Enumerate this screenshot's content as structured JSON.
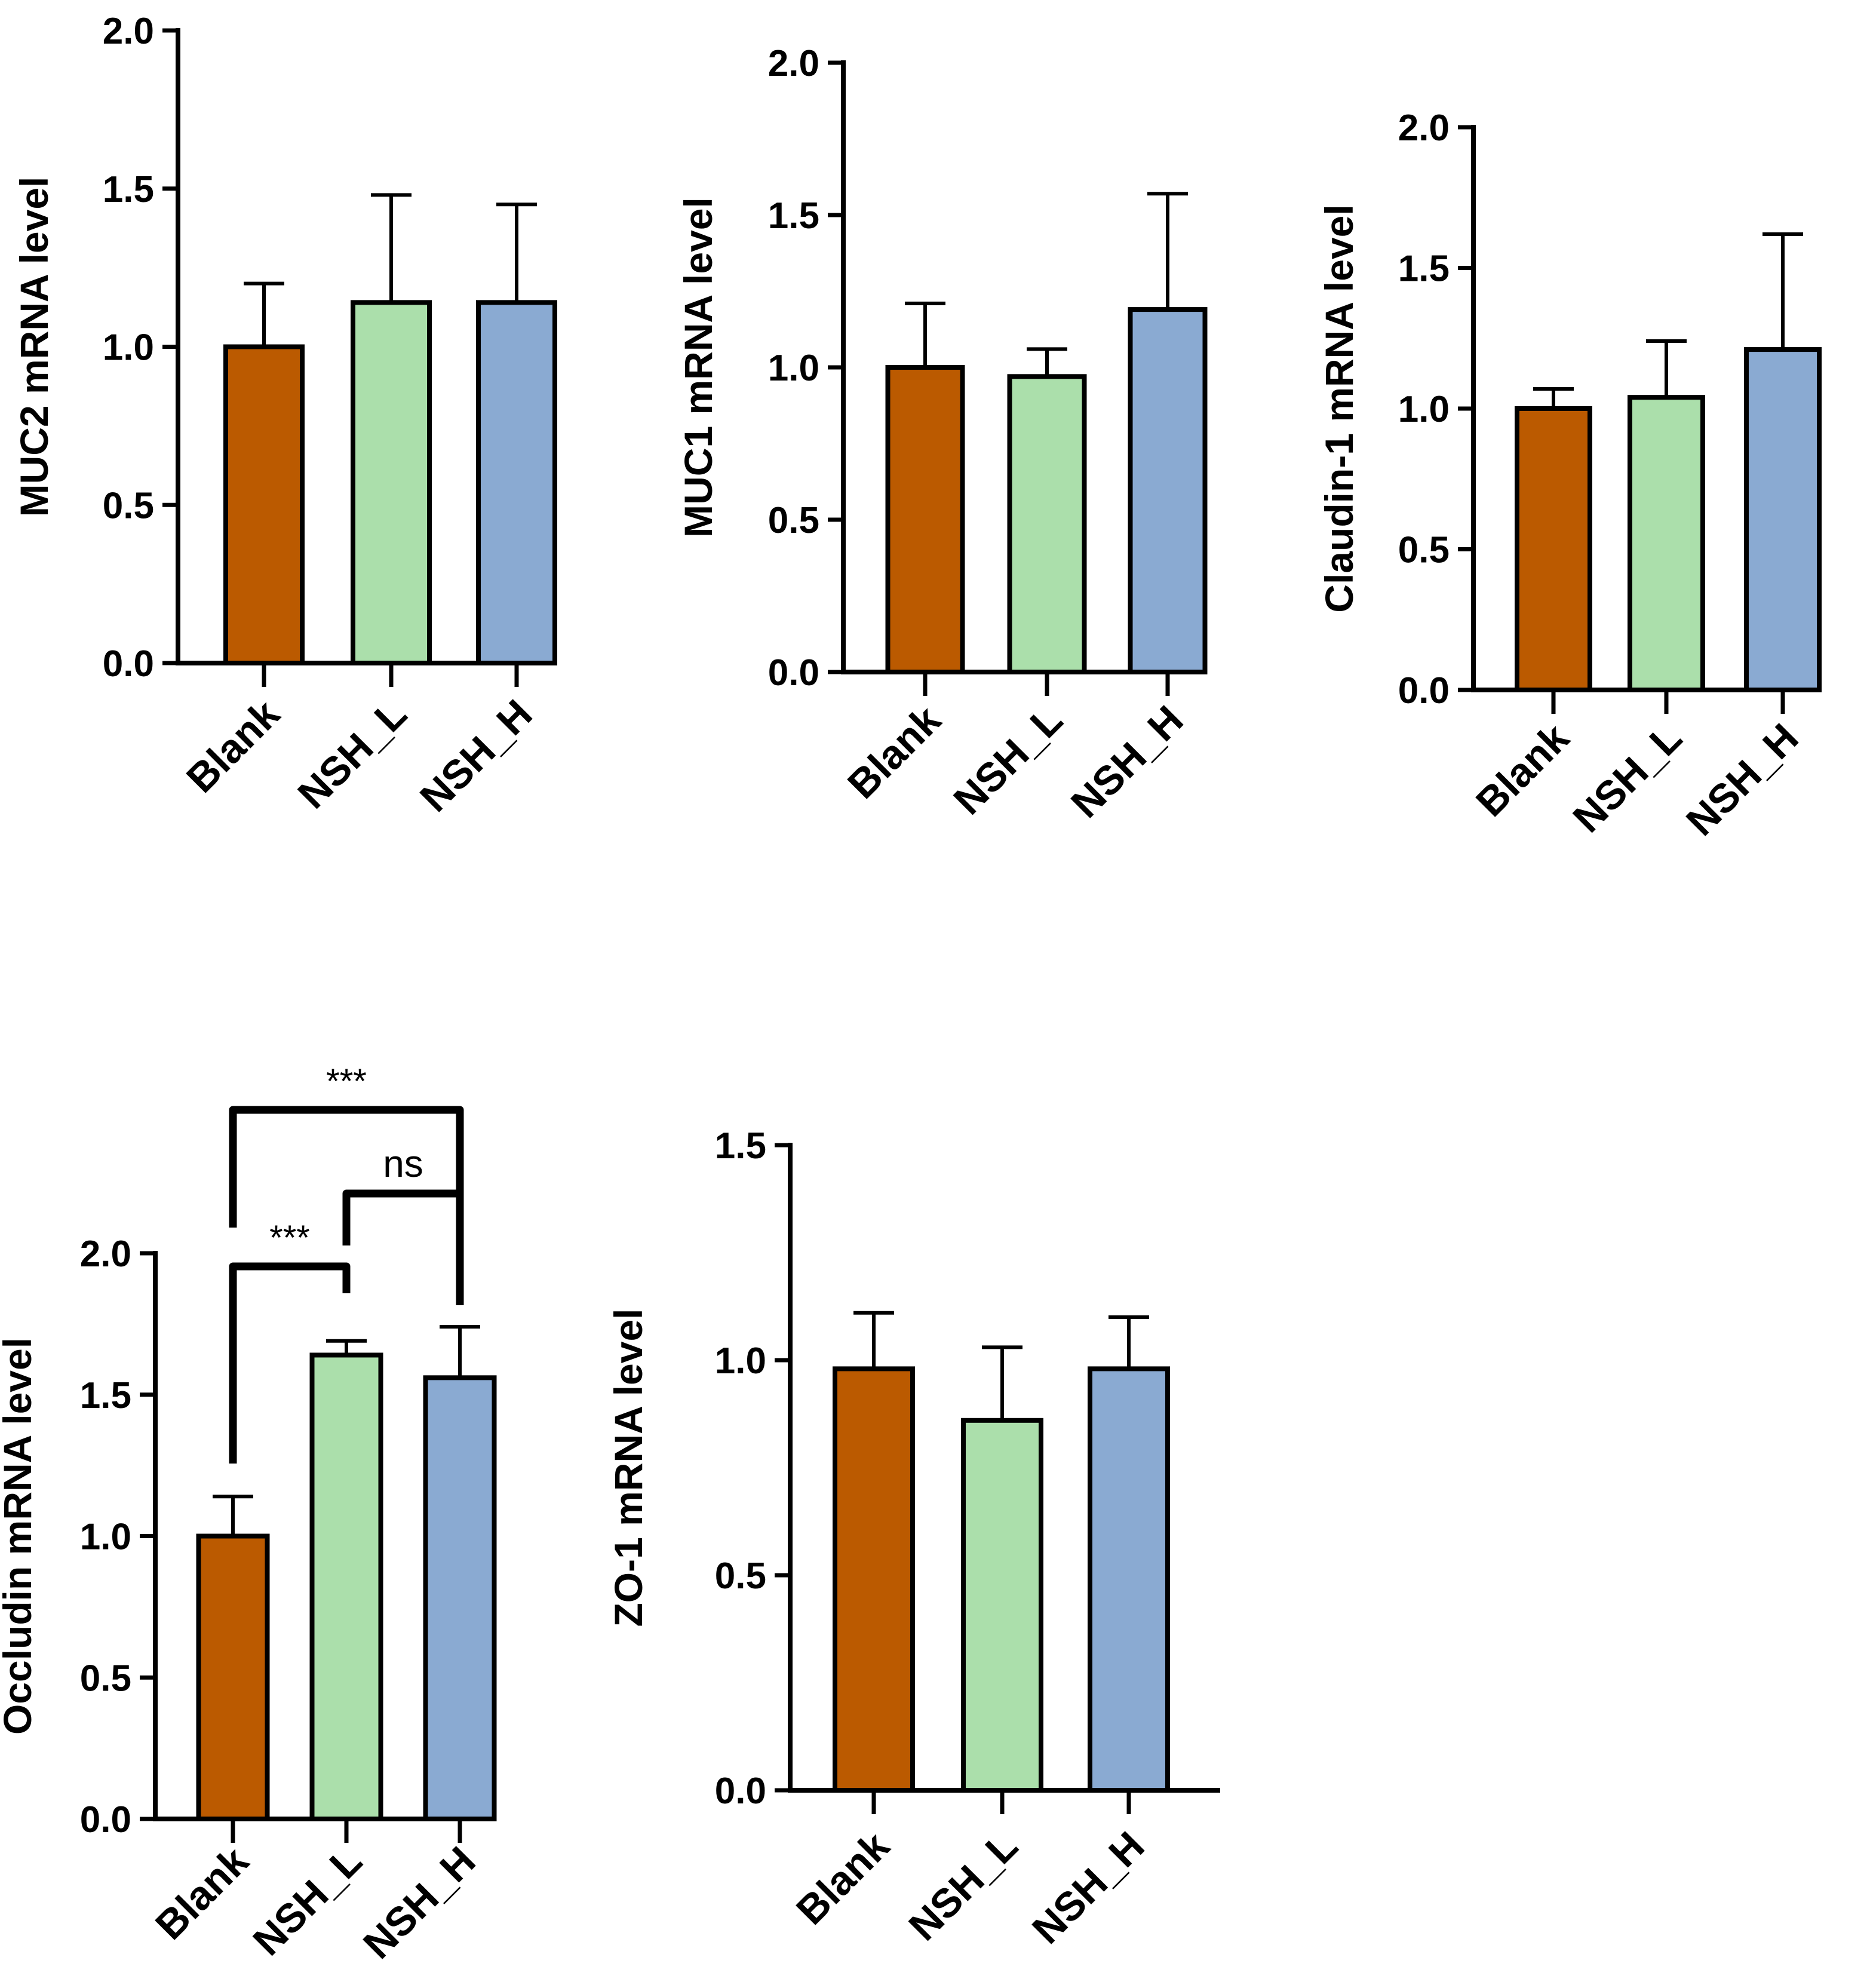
{
  "figure": {
    "panel_count": 5
  },
  "colors": {
    "axis": "#000000",
    "Blank": "#bb5a00",
    "NSH_L": "#abdfab",
    "NSH_H": "#8aaad2"
  },
  "chart_data": [
    {
      "type": "bar",
      "ylabel": "MUC2 mRNA level",
      "categories": [
        "Blank",
        "NSH_L",
        "NSH_H"
      ],
      "values": [
        1.0,
        1.14,
        1.14
      ],
      "errors": [
        0.2,
        0.34,
        0.31
      ],
      "ylim": [
        0,
        2.0
      ],
      "yticks": [
        0.0,
        0.5,
        1.0,
        1.5,
        2.0
      ],
      "ytick_labels": [
        "0.0",
        "0.5",
        "1.0",
        "1.5",
        "2.0"
      ],
      "significance": []
    },
    {
      "type": "bar",
      "ylabel": "MUC1 mRNA level",
      "categories": [
        "Blank",
        "NSH_L",
        "NSH_H"
      ],
      "values": [
        1.0,
        0.97,
        1.19
      ],
      "errors": [
        0.21,
        0.09,
        0.38
      ],
      "ylim": [
        0,
        2.0
      ],
      "yticks": [
        0.0,
        0.5,
        1.0,
        1.5,
        2.0
      ],
      "ytick_labels": [
        "0.0",
        "0.5",
        "1.0",
        "1.5",
        "2.0"
      ],
      "significance": []
    },
    {
      "type": "bar",
      "ylabel": "Claudin-1 mRNA level",
      "categories": [
        "Blank",
        "NSH_L",
        "NSH_H"
      ],
      "values": [
        1.0,
        1.04,
        1.21
      ],
      "errors": [
        0.07,
        0.2,
        0.41
      ],
      "ylim": [
        0,
        2.0
      ],
      "yticks": [
        0.0,
        0.5,
        1.0,
        1.5,
        2.0
      ],
      "ytick_labels": [
        "0.0",
        "0.5",
        "1.0",
        "1.5",
        "2.0"
      ],
      "significance": []
    },
    {
      "type": "bar",
      "ylabel": "Occludin mRNA level",
      "categories": [
        "Blank",
        "NSH_L",
        "NSH_H"
      ],
      "values": [
        1.0,
        1.64,
        1.56
      ],
      "errors": [
        0.14,
        0.05,
        0.18
      ],
      "ylim": [
        0,
        2.0
      ],
      "yticks": [
        0.0,
        0.5,
        1.0,
        1.5,
        2.0
      ],
      "ytick_labels": [
        "0.0",
        "0.5",
        "1.0",
        "1.5",
        "2.0"
      ],
      "significance": [
        {
          "from": "Blank",
          "to": "NSH_L",
          "label": "***",
          "level": 1
        },
        {
          "from": "NSH_L",
          "to": "NSH_H",
          "label": "ns",
          "level": 2
        },
        {
          "from": "Blank",
          "to": "NSH_H",
          "label": "***",
          "level": 3
        }
      ]
    },
    {
      "type": "bar",
      "ylabel": "ZO-1 mRNA level",
      "categories": [
        "Blank",
        "NSH_L",
        "NSH_H"
      ],
      "values": [
        0.98,
        0.86,
        0.98
      ],
      "errors": [
        0.13,
        0.17,
        0.12
      ],
      "ylim": [
        0,
        1.5
      ],
      "yticks": [
        0.0,
        0.5,
        1.0,
        1.5
      ],
      "ytick_labels": [
        "0.0",
        "0.5",
        "1.0",
        "1.5"
      ],
      "significance": []
    }
  ]
}
